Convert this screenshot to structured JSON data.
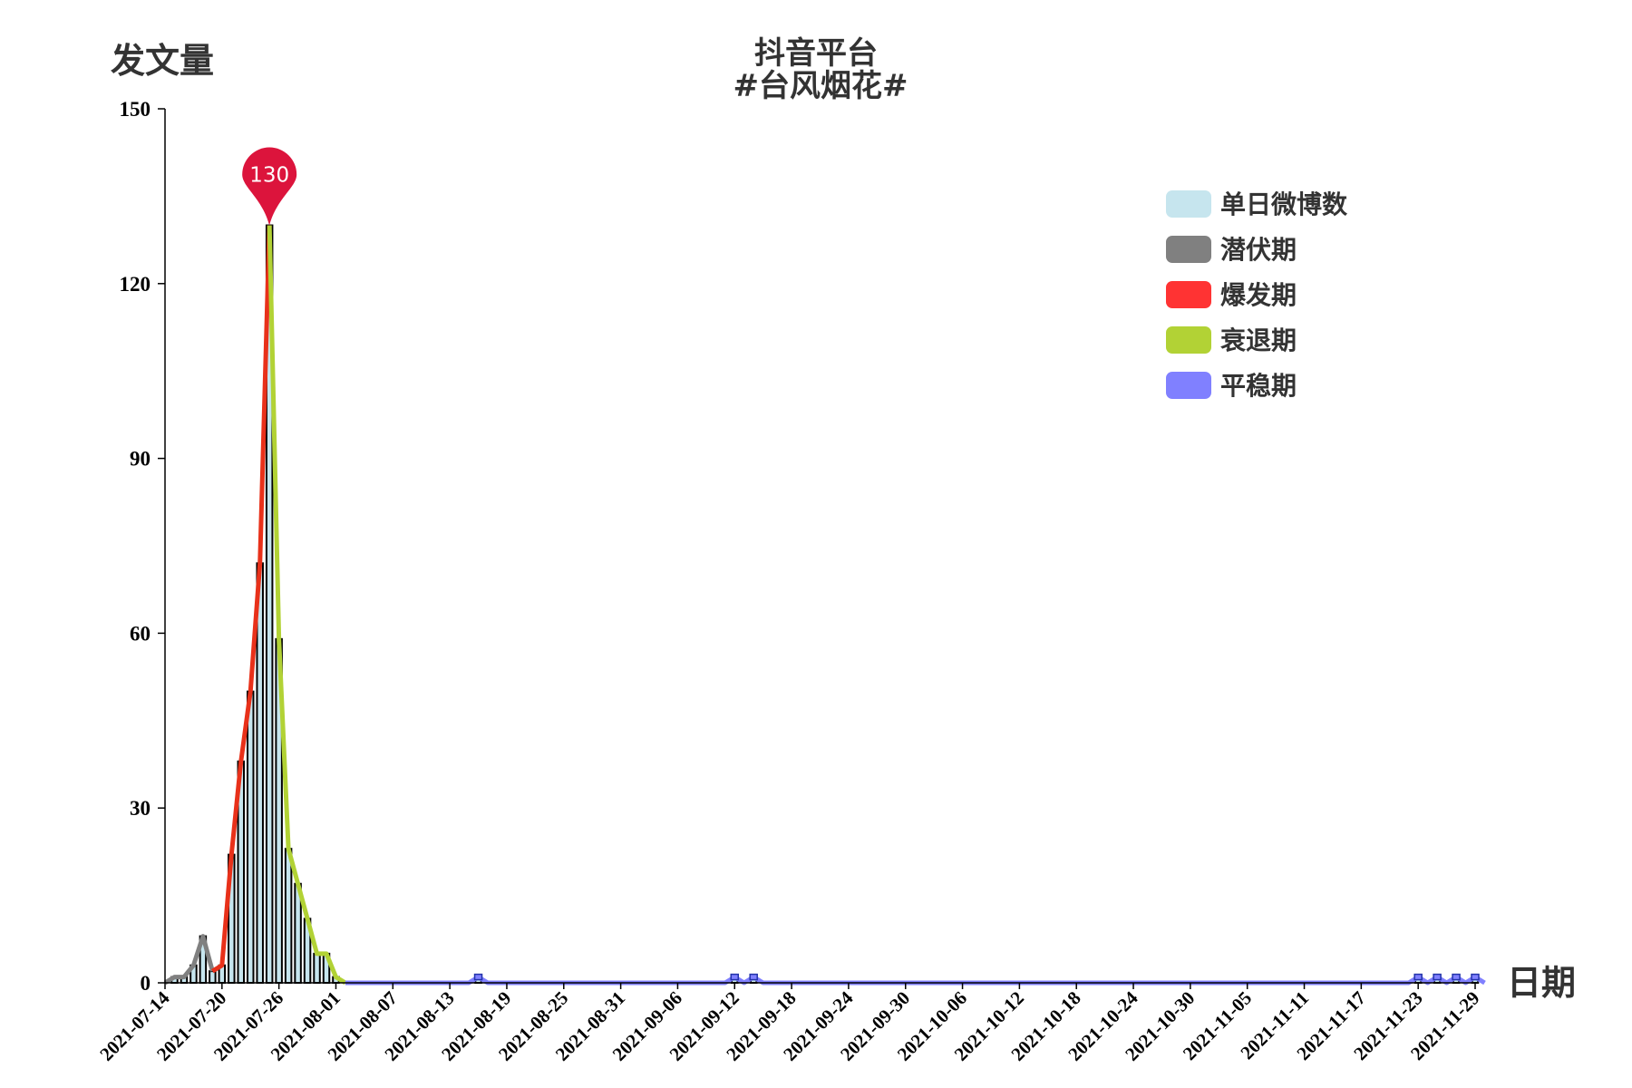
{
  "chart_data": {
    "type": "bar",
    "title": "抖音平台",
    "subtitle": "#台风烟花#",
    "xlabel": "日期",
    "ylabel": "发文量",
    "ylim": [
      0,
      150
    ],
    "yticks": [
      0,
      30,
      60,
      90,
      120,
      150
    ],
    "x_start": "2021-07-14",
    "x_end": "2021-11-29",
    "xticks": [
      "2021-07-14",
      "2021-07-20",
      "2021-07-26",
      "2021-08-01",
      "2021-08-07",
      "2021-08-13",
      "2021-08-19",
      "2021-08-25",
      "2021-08-31",
      "2021-09-06",
      "2021-09-12",
      "2021-09-18",
      "2021-09-24",
      "2021-09-30",
      "2021-10-06",
      "2021-10-12",
      "2021-10-18",
      "2021-10-24",
      "2021-10-30",
      "2021-11-05",
      "2021-11-11",
      "2021-11-17",
      "2021-11-23",
      "2021-11-29"
    ],
    "legend_position": "top-right",
    "grid": false,
    "bar_series": {
      "name": "单日微博数",
      "color": "#c6e5ee",
      "dates": [
        "2021-07-15",
        "2021-07-16",
        "2021-07-17",
        "2021-07-18",
        "2021-07-19",
        "2021-07-20",
        "2021-07-21",
        "2021-07-22",
        "2021-07-23",
        "2021-07-24",
        "2021-07-25",
        "2021-07-26",
        "2021-07-27",
        "2021-07-28",
        "2021-07-29",
        "2021-07-30",
        "2021-07-31",
        "2021-08-01",
        "2021-08-16",
        "2021-09-12",
        "2021-09-14",
        "2021-11-23",
        "2021-11-25",
        "2021-11-27",
        "2021-11-29"
      ],
      "values": [
        1,
        1,
        3,
        8,
        2,
        3,
        22,
        38,
        50,
        72,
        130,
        59,
        23,
        17,
        11,
        5,
        5,
        1,
        1,
        1,
        1,
        1,
        1,
        1,
        1
      ]
    },
    "phases": [
      {
        "name": "潜伏期",
        "color": "#808080",
        "x": [
          "2021-07-14",
          "2021-07-15",
          "2021-07-16",
          "2021-07-17",
          "2021-07-18",
          "2021-07-19"
        ],
        "y": [
          0,
          1,
          1,
          3,
          8,
          2
        ]
      },
      {
        "name": "爆发期",
        "color": "#ff3333",
        "x": [
          "2021-07-19",
          "2021-07-20",
          "2021-07-21",
          "2021-07-22",
          "2021-07-23",
          "2021-07-24",
          "2021-07-25"
        ],
        "y": [
          2,
          3,
          22,
          38,
          50,
          72,
          130
        ]
      },
      {
        "name": "衰退期",
        "color": "#b2d235",
        "x": [
          "2021-07-25",
          "2021-07-26",
          "2021-07-27",
          "2021-07-28",
          "2021-07-29",
          "2021-07-30",
          "2021-07-31",
          "2021-08-01",
          "2021-08-02"
        ],
        "y": [
          130,
          59,
          23,
          17,
          11,
          5,
          5,
          1,
          0
        ]
      },
      {
        "name": "平稳期",
        "color": "#8080ff",
        "x": [
          "2021-08-02",
          "2021-08-15",
          "2021-08-16",
          "2021-08-17",
          "2021-09-11",
          "2021-09-12",
          "2021-09-13",
          "2021-09-14",
          "2021-09-15",
          "2021-11-22",
          "2021-11-23",
          "2021-11-24",
          "2021-11-25",
          "2021-11-26",
          "2021-11-27",
          "2021-11-28",
          "2021-11-29",
          "2021-11-30"
        ],
        "y": [
          0,
          0,
          1,
          0,
          0,
          1,
          0,
          1,
          0,
          0,
          1,
          0,
          1,
          0,
          1,
          0,
          1,
          0
        ]
      }
    ],
    "markpoint": {
      "date": "2021-07-25",
      "value": 130,
      "label": "130",
      "color": "#dc143c"
    }
  }
}
